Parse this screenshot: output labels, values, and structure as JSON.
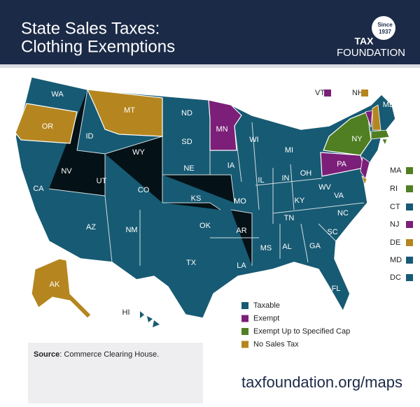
{
  "header": {
    "title_lines": [
      "State Sales Taxes:",
      "Clothing Exemptions"
    ],
    "logo": {
      "badge": [
        "Since",
        "1937"
      ],
      "name": [
        "TAX",
        "FOUNDATION"
      ]
    }
  },
  "legend": {
    "items": [
      {
        "label": "Taxable",
        "color": "#175a73"
      },
      {
        "label": "Exempt",
        "color": "#7b1f78"
      },
      {
        "label": "Exempt Up to Specified Cap",
        "color": "#4f7f22"
      },
      {
        "label": "No Sales Tax",
        "color": "#b5861f"
      }
    ]
  },
  "states": [
    {
      "label": "WA",
      "status": 0
    },
    {
      "label": "OR",
      "status": 3
    },
    {
      "label": "MT",
      "status": 3
    },
    {
      "label": "ID",
      "status": 0
    },
    {
      "label": "ND",
      "status": 0
    },
    {
      "label": "SD",
      "status": 0
    },
    {
      "label": "WY",
      "status": 0
    },
    {
      "label": "MN",
      "status": 1
    },
    {
      "label": "WI",
      "status": 0
    },
    {
      "label": "MI",
      "status": 0
    },
    {
      "label": "NY",
      "status": 2
    },
    {
      "label": "NV",
      "status": 0
    },
    {
      "label": "UT",
      "status": 0
    },
    {
      "label": "CO",
      "status": 0
    },
    {
      "label": "NE",
      "status": 0
    },
    {
      "label": "IA",
      "status": 0
    },
    {
      "label": "IL",
      "status": 0
    },
    {
      "label": "IN",
      "status": 0
    },
    {
      "label": "OH",
      "status": 0
    },
    {
      "label": "PA",
      "status": 1
    },
    {
      "label": "CA",
      "status": 0
    },
    {
      "label": "KS",
      "status": 0
    },
    {
      "label": "MO",
      "status": 0
    },
    {
      "label": "KY",
      "status": 0
    },
    {
      "label": "WV",
      "status": 0
    },
    {
      "label": "VA",
      "status": 0
    },
    {
      "label": "AZ",
      "status": 0
    },
    {
      "label": "NM",
      "status": 0
    },
    {
      "label": "OK",
      "status": 0
    },
    {
      "label": "AR",
      "status": 0
    },
    {
      "label": "TN",
      "status": 0
    },
    {
      "label": "NC",
      "status": 0
    },
    {
      "label": "SC",
      "status": 0
    },
    {
      "label": "MS",
      "status": 0
    },
    {
      "label": "AL",
      "status": 0
    },
    {
      "label": "GA",
      "status": 0
    },
    {
      "label": "TX",
      "status": 0
    },
    {
      "label": "LA",
      "status": 0
    },
    {
      "label": "FL",
      "status": 0
    },
    {
      "label": "AK",
      "status": 3
    },
    {
      "label": "HI",
      "status": 0
    },
    {
      "label": "ME",
      "status": 0
    }
  ],
  "small_states": [
    {
      "label": "VT",
      "status": 1
    },
    {
      "label": "NH",
      "status": 3
    },
    {
      "label": "MA",
      "status": 2
    },
    {
      "label": "RI",
      "status": 2
    },
    {
      "label": "CT",
      "status": 0
    },
    {
      "label": "NJ",
      "status": 1
    },
    {
      "label": "DE",
      "status": 3
    },
    {
      "label": "MD",
      "status": 0
    },
    {
      "label": "DC",
      "status": 0
    }
  ],
  "source": {
    "label": "Source",
    "text": ": Commerce Clearing House."
  },
  "url": "taxfoundation.org/maps"
}
